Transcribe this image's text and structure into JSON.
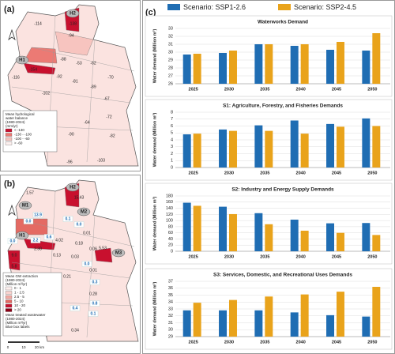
{
  "panels": {
    "a": {
      "letter": "(a)",
      "labels": [
        "-114",
        "-138",
        "-94",
        "-88",
        "-53",
        "-62",
        "-70",
        "-154",
        "-92",
        "-116",
        "-81",
        "-89",
        "-67",
        "-102",
        "-72",
        "-64",
        "-90",
        "-82",
        "-96",
        "-103"
      ],
      "sites": [
        "H2",
        "H1"
      ],
      "legend_title": [
        "Mean hydrological",
        "water balance",
        "(1980-2024)",
        "(mm/yr)"
      ],
      "legend_items": [
        {
          "label": "< -130",
          "color": "#c8102e"
        },
        {
          "label": "-130 - -100",
          "color": "#ec7a74"
        },
        {
          "label": "-100 - -60",
          "color": "#f7c4bf"
        },
        {
          "label": "> -60",
          "color": "#fdf0ee"
        }
      ]
    },
    "b": {
      "letter": "(b)",
      "labels": [
        "1.57",
        "15.43",
        "4.02",
        "0.01",
        "0.18",
        "0.06",
        "5.53",
        "0.13",
        "0.03",
        "9.0",
        "5.8",
        "2.30",
        "0.01",
        "0.21",
        "0.28",
        "1.01",
        "0.14",
        "0.34"
      ],
      "boxed_labels": [
        "13.9",
        "0.0",
        "0.1",
        "0.0",
        "0.6",
        "2.2",
        "0.0",
        "0.0",
        "0.3",
        "0.8",
        "0.4",
        "0.1"
      ],
      "sites": [
        "H2",
        "M1",
        "M2",
        "H1",
        "M3"
      ],
      "legend_title": [
        "Mean GW extraction",
        "(1980-2024)",
        "(Million m³/yr)"
      ],
      "legend_items": [
        {
          "label": "0 - 1",
          "color": "#fdf0ee"
        },
        {
          "label": "1 - 2.5",
          "color": "#f9d3cf"
        },
        {
          "label": "2.5 - 5",
          "color": "#f3a8a1"
        },
        {
          "label": "5 - 10",
          "color": "#e46a63"
        },
        {
          "label": "10 - 20",
          "color": "#c8102e"
        },
        {
          "label": "> 20",
          "color": "#8b0015"
        }
      ],
      "legend_note": [
        "Mean treated wastewater",
        "(1980-2024)",
        "(Million m³/yr)",
        "Blue box labels"
      ],
      "scale_bar": [
        "0",
        "10",
        "20 km"
      ]
    },
    "c": {
      "letter": "(c)"
    }
  },
  "chart_data": [
    {
      "type": "bar",
      "title": "Waterworks Demand",
      "y_label": "Water demand (Million m³)",
      "categories": [
        "2025",
        "2030",
        "2035",
        "2040",
        "2045",
        "2050"
      ],
      "series": [
        {
          "name": "Scenario: SSP1-2.6",
          "color": "#1f6db3",
          "values": [
            29.7,
            29.9,
            31.0,
            30.8,
            30.3,
            30.2
          ]
        },
        {
          "name": "Scenario: SSP2-4.5",
          "color": "#e9a31b",
          "values": [
            29.8,
            30.2,
            31.0,
            31.0,
            31.3,
            32.4
          ]
        }
      ],
      "ylim": [
        26,
        33
      ],
      "yticks": [
        26,
        27,
        28,
        29,
        30,
        31,
        32,
        33
      ],
      "grid": true
    },
    {
      "type": "bar",
      "title": "S1: Agriculture, Forestry, and Fisheries Demands",
      "y_label": "Water demand (Million m³)",
      "categories": [
        "2025",
        "2030",
        "2035",
        "2040",
        "2045",
        "2050"
      ],
      "series": [
        {
          "name": "Scenario: SSP1-2.6",
          "color": "#1f6db3",
          "values": [
            4.8,
            5.5,
            6.1,
            6.8,
            6.3,
            7.1
          ]
        },
        {
          "name": "Scenario: SSP2-4.5",
          "color": "#e9a31b",
          "values": [
            4.9,
            5.3,
            5.3,
            4.9,
            5.9,
            6.0
          ]
        }
      ],
      "ylim": [
        0,
        8
      ],
      "yticks": [
        0,
        1,
        2,
        3,
        4,
        5,
        6,
        7,
        8
      ],
      "grid": true
    },
    {
      "type": "bar",
      "title": "S2: Industry and Energy Supply Demands",
      "y_label": "Water demand (Million m³)",
      "categories": [
        "2025",
        "2030",
        "2035",
        "2040",
        "2045",
        "2050"
      ],
      "series": [
        {
          "name": "Scenario: SSP1-2.6",
          "color": "#1f6db3",
          "values": [
            158,
            145,
            124,
            103,
            91,
            92
          ]
        },
        {
          "name": "Scenario: SSP2-4.5",
          "color": "#e9a31b",
          "values": [
            148,
            121,
            88,
            67,
            60,
            53
          ]
        }
      ],
      "ylim": [
        0,
        180
      ],
      "yticks": [
        0,
        20,
        40,
        60,
        80,
        100,
        120,
        140,
        160,
        180
      ],
      "grid": true
    },
    {
      "type": "bar",
      "title": "S3: Services, Domestic, and Recreational Uses Demands",
      "y_label": "Water demand (Million m³)",
      "categories": [
        "2025",
        "2030",
        "2035",
        "2040",
        "2045",
        "2050"
      ],
      "series": [
        {
          "name": "Scenario: SSP1-2.6",
          "color": "#1f6db3",
          "values": [
            32.8,
            32.8,
            32.8,
            32.5,
            32.1,
            31.9
          ]
        },
        {
          "name": "Scenario: SSP2-4.5",
          "color": "#e9a31b",
          "values": [
            33.9,
            34.3,
            34.8,
            35.1,
            35.5,
            36.2
          ]
        }
      ],
      "ylim": [
        29,
        37
      ],
      "yticks": [
        29,
        30,
        31,
        32,
        33,
        34,
        35,
        36,
        37
      ],
      "grid": true
    }
  ]
}
